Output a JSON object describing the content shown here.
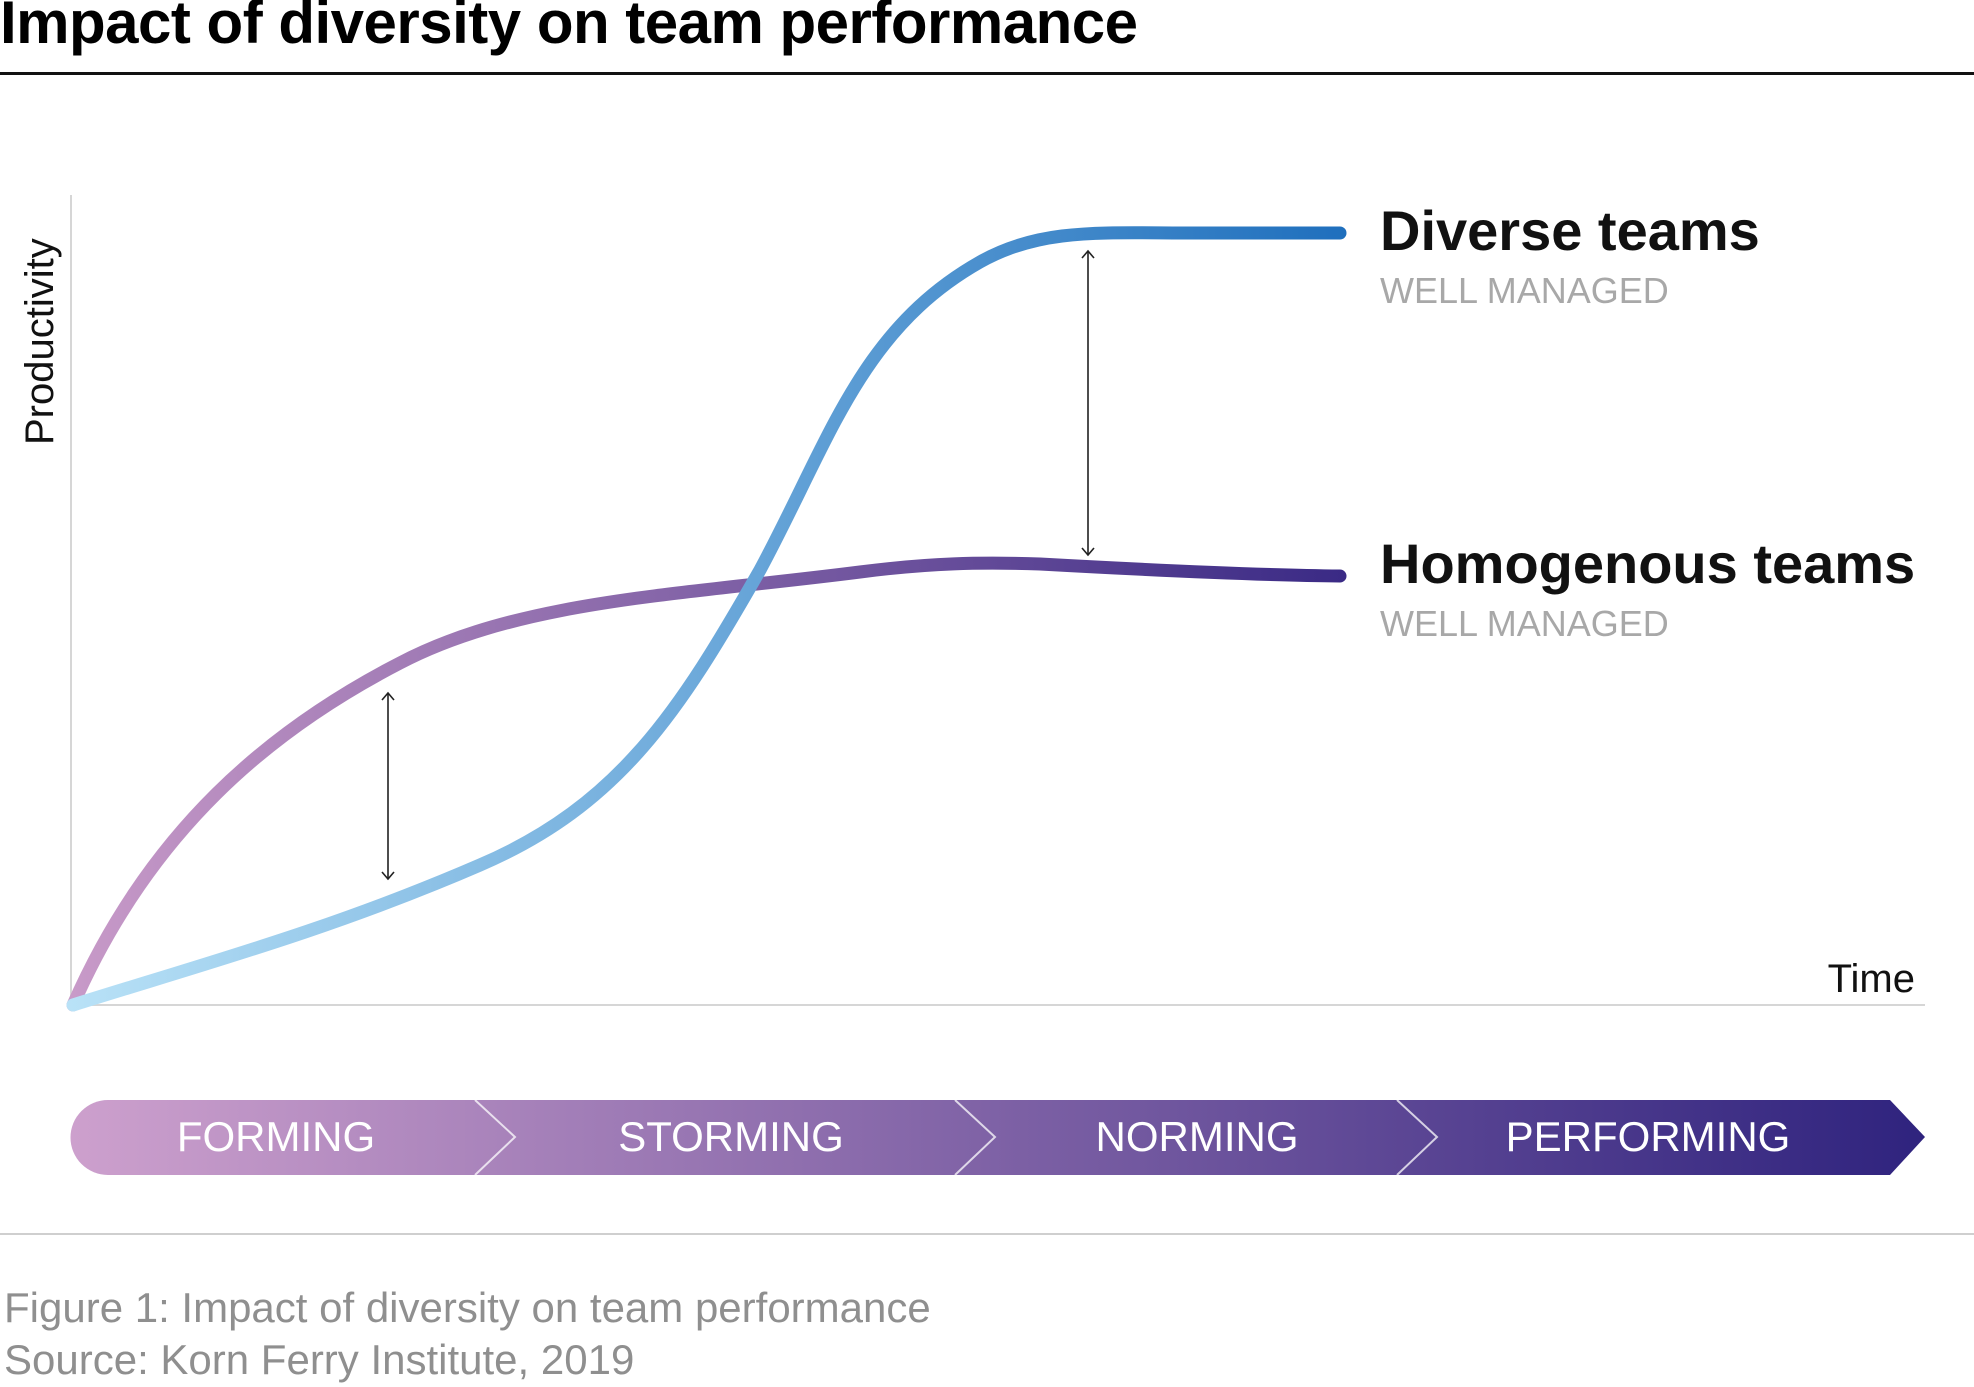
{
  "title": "Impact of diversity on team performance",
  "axes": {
    "y_label": "Productivity",
    "x_label": "Time"
  },
  "series": [
    {
      "name": "Diverse teams",
      "qualifier": "WELL MANAGED",
      "color_start": "#b9e2f7",
      "color_end": "#1f6fbd"
    },
    {
      "name": "Homogenous teams",
      "qualifier": "WELL MANAGED",
      "color_start": "#c89ac8",
      "color_end": "#3a2a85"
    }
  ],
  "stages": [
    "FORMING",
    "STORMING",
    "NORMING",
    "PERFORMING"
  ],
  "stage_gradient": {
    "start": "#cda0cd",
    "end": "#2f237e"
  },
  "caption": "Figure 1: Impact of diversity on team performance",
  "source": "Source: Korn Ferry Institute, 2019"
}
